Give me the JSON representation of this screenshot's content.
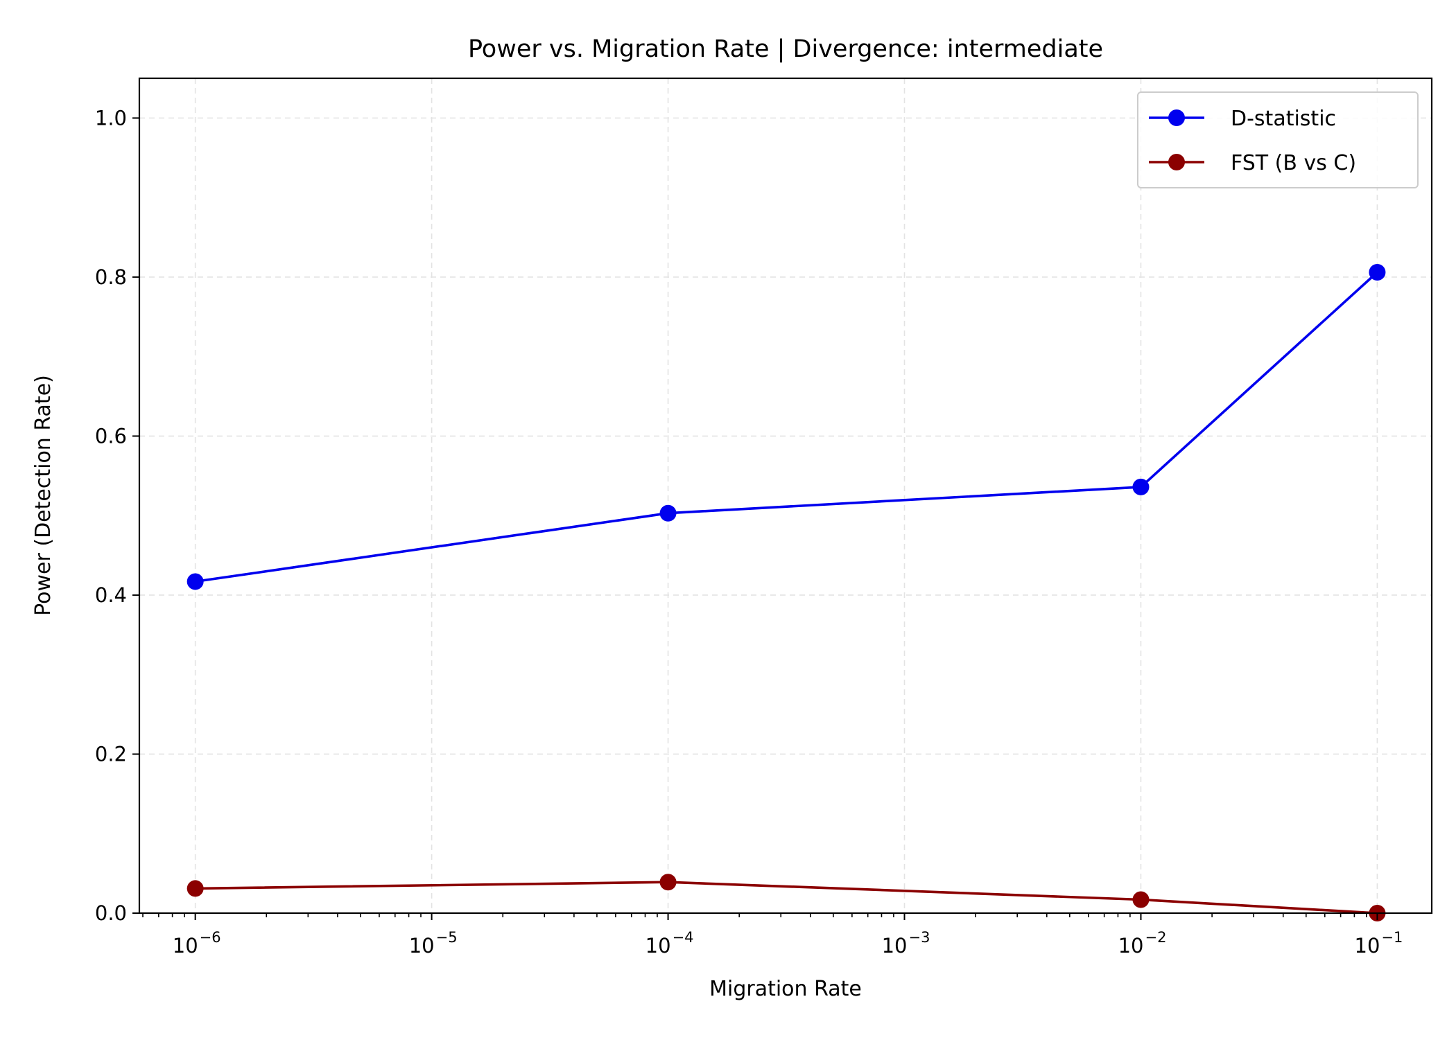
{
  "chart_data": {
    "type": "line",
    "title": "Power vs. Migration Rate | Divergence: intermediate",
    "xlabel": "Migration Rate",
    "ylabel": "Power (Detection Rate)",
    "x_scale": "log",
    "x_ticks": [
      {
        "base": "10",
        "exponent": "−6",
        "value": 1e-06
      },
      {
        "base": "10",
        "exponent": "−5",
        "value": 1e-05
      },
      {
        "base": "10",
        "exponent": "−4",
        "value": 0.0001
      },
      {
        "base": "10",
        "exponent": "−3",
        "value": 0.001
      },
      {
        "base": "10",
        "exponent": "−2",
        "value": 0.01
      },
      {
        "base": "10",
        "exponent": "−1",
        "value": 0.1
      }
    ],
    "y_ticks": [
      "0.0",
      "0.2",
      "0.4",
      "0.6",
      "0.8",
      "1.0"
    ],
    "xlim": [
      5.8e-07,
      0.17
    ],
    "ylim": [
      0,
      1.05
    ],
    "grid": true,
    "legend_position": "top-right",
    "x": [
      1e-06,
      0.0001,
      0.01,
      0.1
    ],
    "series": [
      {
        "name": "D-statistic",
        "color": "#0000ee",
        "values": [
          0.417,
          0.503,
          0.536,
          0.806
        ]
      },
      {
        "name": "FST (B vs C)",
        "color": "#8b0000",
        "values": [
          0.031,
          0.039,
          0.017,
          0.0
        ]
      }
    ]
  }
}
